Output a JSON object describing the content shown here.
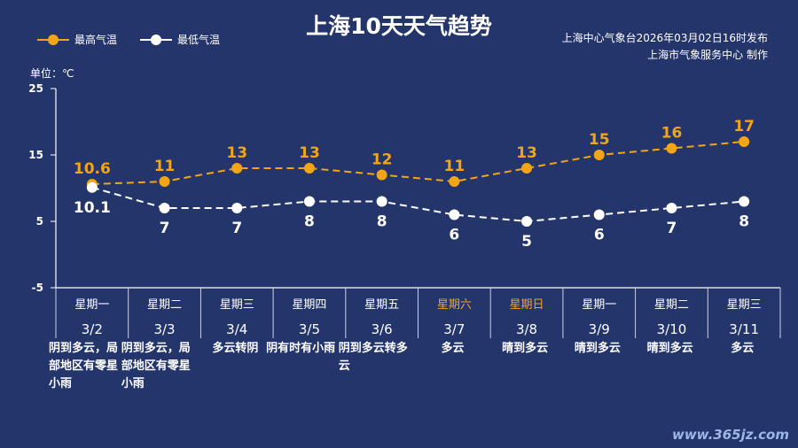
{
  "header": {
    "title": "上海10天天气趋势",
    "issuer_line1": "上海中心气象台2026年03月02日16时发布",
    "issuer_line2": "上海市气象服务中心 制作",
    "watermark": "www.365jz.com"
  },
  "chart_data": {
    "type": "line",
    "ylabel": "单位：℃",
    "ylim": [
      -5,
      25
    ],
    "yticks": [
      25,
      15,
      5,
      -5
    ],
    "categories": [
      "3/2",
      "3/3",
      "3/4",
      "3/5",
      "3/6",
      "3/7",
      "3/8",
      "3/9",
      "3/10",
      "3/11"
    ],
    "weekdays": [
      "星期一",
      "星期二",
      "星期三",
      "星期四",
      "星期五",
      "星期六",
      "星期日",
      "星期一",
      "星期二",
      "星期三"
    ],
    "weekend_flags": [
      false,
      false,
      false,
      false,
      false,
      true,
      true,
      false,
      false,
      false
    ],
    "descriptions": [
      "阴到多云，局部地区有零星小雨",
      "阴到多云，局部地区有零星小雨",
      "多云转阴",
      "阴有时有小雨",
      "阴到多云转多云",
      "多云",
      "晴到多云",
      "晴到多云",
      "晴到多云",
      "多云"
    ],
    "series": [
      {
        "name": "最高气温",
        "values": [
          10.6,
          11,
          13,
          13,
          12,
          11,
          13,
          15,
          16,
          17
        ],
        "labels": [
          "10.6",
          "11",
          "13",
          "13",
          "12",
          "11",
          "13",
          "15",
          "16",
          "17"
        ],
        "color": "#f2a516",
        "line_style": "dashed"
      },
      {
        "name": "最低气温",
        "values": [
          10.1,
          7,
          7,
          8,
          8,
          6,
          5,
          6,
          7,
          8
        ],
        "labels": [
          "10.1",
          "7",
          "7",
          "8",
          "8",
          "6",
          "5",
          "6",
          "7",
          "8"
        ],
        "color": "#ffffff",
        "line_style": "dashed"
      }
    ],
    "legend_position": "top-left",
    "grid": false
  },
  "colors": {
    "background": "#24356b",
    "weekend": "#f2a516",
    "axis": "#ffffff"
  }
}
